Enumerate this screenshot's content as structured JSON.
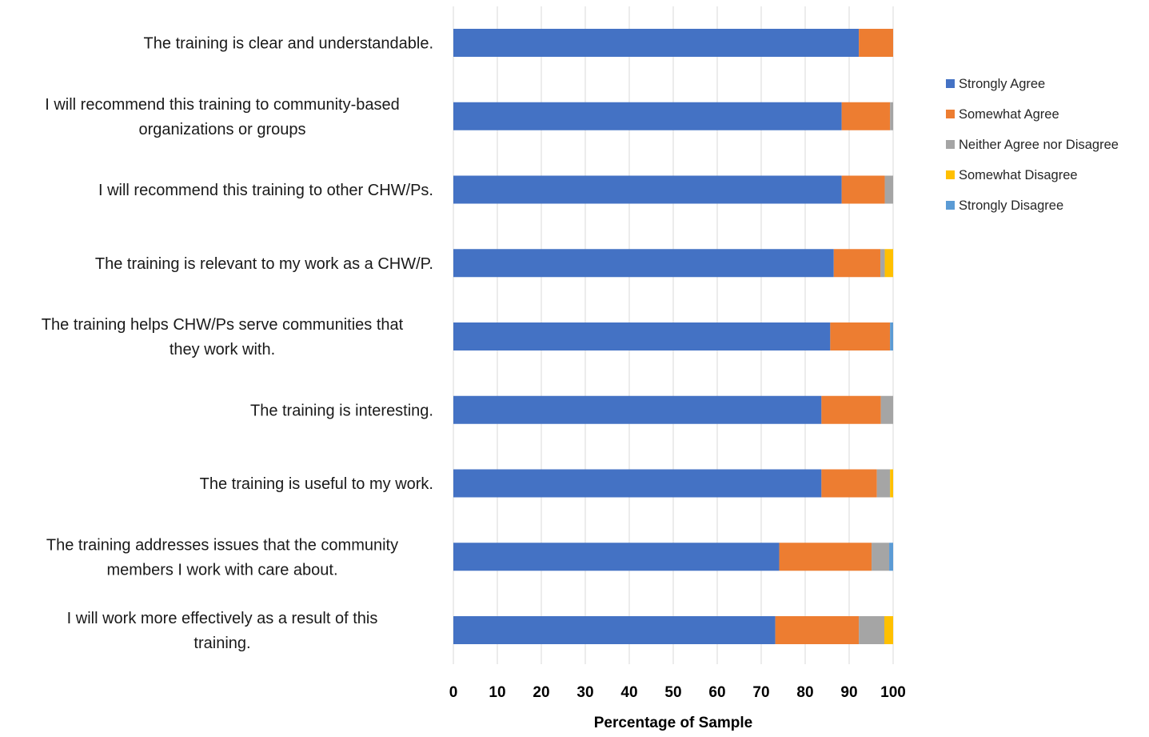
{
  "chart_data": {
    "type": "bar",
    "orientation": "horizontal",
    "stacked": true,
    "categories": [
      "The training is clear and understandable.",
      "I will recommend this training to community-based organizations or groups",
      "I will recommend this training to other CHW/Ps.",
      "The training is relevant to my work as a CHW/P.",
      "The training helps CHW/Ps serve communities that they work with.",
      "The training is interesting.",
      "The training is useful to my work.",
      "The training addresses issues that the community members I work with care about.",
      "I will work more effectively as a result of this training."
    ],
    "category_lines": [
      [
        "The training is clear and understandable."
      ],
      [
        "I will recommend this training to community-based",
        "organizations or groups"
      ],
      [
        "I will recommend this training to other CHW/Ps."
      ],
      [
        "The training is relevant to my work as a CHW/P."
      ],
      [
        "The training helps CHW/Ps serve communities that",
        "they work with."
      ],
      [
        "The training is interesting."
      ],
      [
        "The training is useful to my work."
      ],
      [
        "The training addresses issues that the community",
        "members I work with care about."
      ],
      [
        "I will work more effectively as a result of this",
        "training."
      ]
    ],
    "series": [
      {
        "name": "Strongly Agree",
        "color": "#4472C4",
        "values": [
          92.2,
          88.3,
          88.3,
          86.5,
          85.7,
          83.7,
          83.7,
          74.1,
          73.2
        ]
      },
      {
        "name": "Somewhat Agree",
        "color": "#ED7D31",
        "values": [
          7.8,
          11.0,
          9.8,
          10.6,
          13.6,
          13.5,
          12.6,
          21.0,
          19.0
        ]
      },
      {
        "name": "Neither Agree nor Disagree",
        "color": "#A5A5A5",
        "values": [
          0,
          0.7,
          1.9,
          1.0,
          0,
          2.8,
          3.0,
          4.0,
          5.8
        ]
      },
      {
        "name": "Somewhat Disagree",
        "color": "#FFC000",
        "values": [
          0,
          0,
          0,
          1.9,
          0,
          0,
          0.7,
          0,
          2.0
        ]
      },
      {
        "name": "Strongly Disagree",
        "color": "#5B9BD5",
        "values": [
          0,
          0,
          0,
          0,
          0.7,
          0,
          0,
          0.9,
          0
        ]
      }
    ],
    "xlabel": "Percentage of Sample",
    "ylabel": "",
    "xlim": [
      0,
      100
    ],
    "xticks": [
      0,
      10,
      20,
      30,
      40,
      50,
      60,
      70,
      80,
      90,
      100
    ],
    "grid": true,
    "legend": "right"
  }
}
